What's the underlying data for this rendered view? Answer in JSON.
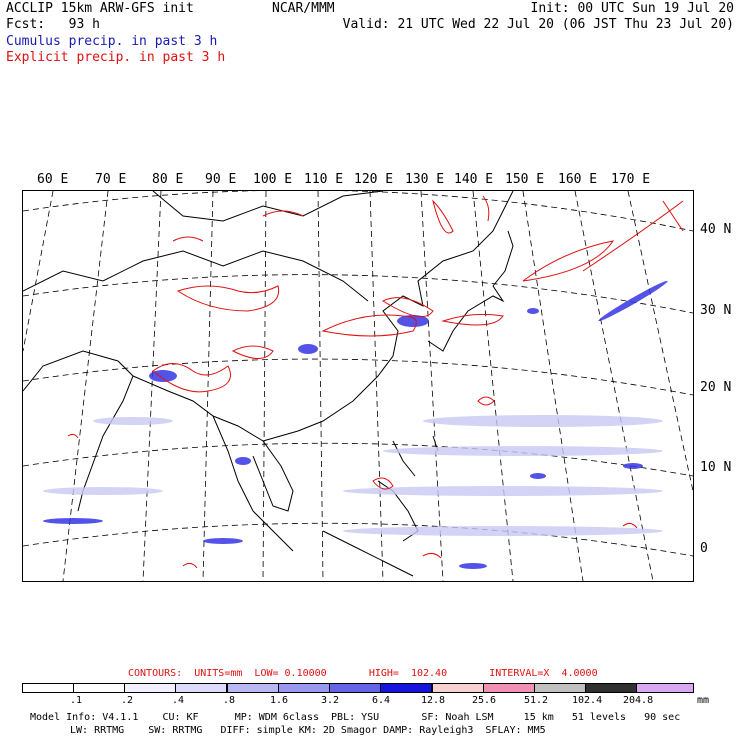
{
  "header": {
    "left_line1": "ACCLIP 15km ARW-GFS init",
    "left_line2": "Fcst:   93 h",
    "center": "NCAR/MMM",
    "init": "Init: 00 UTC Sun 19 Jul 20",
    "valid": "Valid: 21 UTC Wed 22 Jul 20 (06 JST Thu 23 Jul 20)",
    "legend_cumulus": "Cumulus precip. in past 3 h",
    "legend_explicit": "Explicit precip. in past 3 h"
  },
  "map": {
    "lon_labels": [
      "60 E",
      "70 E",
      "80 E",
      "90 E",
      "100 E",
      "110 E",
      "120 E",
      "130 E",
      "140 E",
      "150 E",
      "160 E",
      "170 E"
    ],
    "lat_labels": [
      "40 N",
      "30 N",
      "20 N",
      "10 N",
      "0"
    ],
    "colors": {
      "cumulus": "#3030e0",
      "explicit": "#e01010",
      "coast": "#000000"
    }
  },
  "colorbar": {
    "contours": "CONTOURS:  UNITS=mm  LOW= 0.10000       HIGH=  102.40       INTERVAL=X  4.0000",
    "units": "mm",
    "ticks": [
      ".1",
      ".2",
      ".4",
      ".8",
      "1.6",
      "3.2",
      "6.4",
      "12.8",
      "25.6",
      "51.2",
      "102.4",
      "204.8"
    ],
    "colors": [
      "#ffffff",
      "#ffffff",
      "#f0f0ff",
      "#dcdcfa",
      "#b8b8f4",
      "#9898ee",
      "#6464e6",
      "#1414dc",
      "#f8d0d0",
      "#f090b4",
      "#c0c0c0",
      "#303030",
      "#d8a8f0"
    ]
  },
  "model_info": {
    "line1": "Model Info: V4.1.1    CU: KF      MP: WDM 6class  PBL: YSU       SF: Noah LSM     15 km   51 levels   90 sec",
    "line2": "LW: RRTMG    SW: RRTMG   DIFF: simple KM: 2D Smagor DAMP: Rayleigh3  SFLAY: MM5"
  }
}
